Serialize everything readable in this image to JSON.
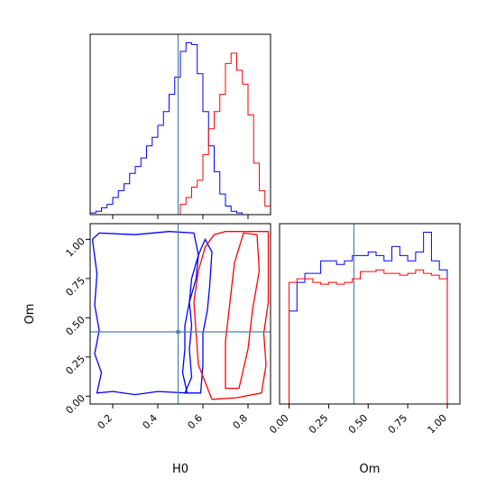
{
  "chart_data": {
    "type": "corner",
    "truth": {
      "H0": 0.49,
      "Om": 0.41
    },
    "colors": {
      "blue": "#0000ff",
      "red": "#ff0000",
      "truth": "#4c7fb5"
    },
    "panels": [
      {
        "id": "hist-H0",
        "type": "step-histogram",
        "xlim": [
          0.1,
          0.9
        ],
        "bins": [
          0.1,
          0.125,
          0.15,
          0.175,
          0.2,
          0.225,
          0.25,
          0.275,
          0.3,
          0.325,
          0.35,
          0.375,
          0.4,
          0.425,
          0.45,
          0.475,
          0.5,
          0.525,
          0.55,
          0.575,
          0.6,
          0.625,
          0.65,
          0.675,
          0.7,
          0.725,
          0.75,
          0.775,
          0.8,
          0.825,
          0.85,
          0.875,
          0.9
        ],
        "series": [
          {
            "color": "blue",
            "values": [
              0.01,
              0.02,
              0.04,
              0.06,
              0.1,
              0.14,
              0.18,
              0.24,
              0.28,
              0.33,
              0.4,
              0.45,
              0.52,
              0.6,
              0.7,
              0.8,
              0.95,
              1.0,
              0.99,
              0.82,
              0.6,
              0.4,
              0.25,
              0.12,
              0.05,
              0.02,
              0.01,
              0.0,
              0.0,
              0.0,
              0.0,
              0.0
            ]
          },
          {
            "color": "red",
            "values": [
              0.0,
              0.0,
              0.0,
              0.0,
              0.0,
              0.0,
              0.0,
              0.0,
              0.0,
              0.0,
              0.0,
              0.0,
              0.0,
              0.0,
              0.0,
              0.0,
              0.06,
              0.1,
              0.16,
              0.2,
              0.35,
              0.5,
              0.6,
              0.7,
              0.88,
              0.94,
              0.84,
              0.76,
              0.58,
              0.3,
              0.14,
              0.05
            ]
          }
        ]
      },
      {
        "id": "contour-H0-Om",
        "type": "contour",
        "xlim": [
          0.1,
          0.9
        ],
        "ylim": [
          -0.05,
          1.1
        ],
        "xticks": [
          "0.2",
          "0.4",
          "0.6",
          "0.8"
        ],
        "yticks": [
          "0.00",
          "0.25",
          "0.50",
          "0.75",
          "1.00"
        ],
        "xlabel": "H0",
        "ylabel": "Om",
        "series": [
          {
            "color": "blue",
            "contours": [
              [
                [
                  0.13,
                  0.02
                ],
                [
                  0.15,
                  0.15
                ],
                [
                  0.12,
                  0.27
                ],
                [
                  0.14,
                  0.42
                ],
                [
                  0.12,
                  0.58
                ],
                [
                  0.13,
                  0.78
                ],
                [
                  0.11,
                  1.0
                ],
                [
                  0.14,
                  1.04
                ],
                [
                  0.3,
                  1.03
                ],
                [
                  0.45,
                  1.05
                ],
                [
                  0.56,
                  1.04
                ],
                [
                  0.58,
                  0.9
                ],
                [
                  0.55,
                  0.75
                ],
                [
                  0.54,
                  0.6
                ],
                [
                  0.52,
                  0.45
                ],
                [
                  0.52,
                  0.3
                ],
                [
                  0.51,
                  0.15
                ],
                [
                  0.53,
                  0.02
                ],
                [
                  0.4,
                  0.03
                ],
                [
                  0.3,
                  0.01
                ],
                [
                  0.2,
                  0.03
                ],
                [
                  0.13,
                  0.02
                ]
              ],
              [
                [
                  0.52,
                  0.02
                ],
                [
                  0.55,
                  0.12
                ],
                [
                  0.54,
                  0.3
                ],
                [
                  0.55,
                  0.45
                ],
                [
                  0.54,
                  0.6
                ],
                [
                  0.57,
                  0.75
                ],
                [
                  0.58,
                  0.9
                ],
                [
                  0.61,
                  1.0
                ],
                [
                  0.64,
                  0.92
                ],
                [
                  0.63,
                  0.7
                ],
                [
                  0.62,
                  0.55
                ],
                [
                  0.6,
                  0.4
                ],
                [
                  0.6,
                  0.2
                ],
                [
                  0.59,
                  0.02
                ],
                [
                  0.52,
                  0.02
                ]
              ]
            ]
          },
          {
            "color": "red",
            "contours": [
              [
                [
                  0.64,
                  -0.02
                ],
                [
                  0.75,
                  -0.01
                ],
                [
                  0.86,
                  0.02
                ],
                [
                  0.88,
                  0.2
                ],
                [
                  0.87,
                  0.4
                ],
                [
                  0.89,
                  0.6
                ],
                [
                  0.89,
                  1.05
                ],
                [
                  0.7,
                  1.05
                ],
                [
                  0.65,
                  1.03
                ],
                [
                  0.61,
                  0.95
                ],
                [
                  0.58,
                  0.8
                ],
                [
                  0.56,
                  0.6
                ],
                [
                  0.57,
                  0.4
                ],
                [
                  0.58,
                  0.2
                ],
                [
                  0.64,
                  -0.02
                ]
              ],
              [
                [
                  0.7,
                  0.05
                ],
                [
                  0.76,
                  0.05
                ],
                [
                  0.8,
                  0.3
                ],
                [
                  0.82,
                  0.55
                ],
                [
                  0.85,
                  0.8
                ],
                [
                  0.84,
                  1.03
                ],
                [
                  0.78,
                  1.04
                ],
                [
                  0.74,
                  0.85
                ],
                [
                  0.72,
                  0.6
                ],
                [
                  0.7,
                  0.35
                ],
                [
                  0.7,
                  0.05
                ]
              ]
            ]
          }
        ]
      },
      {
        "id": "hist-Om",
        "type": "step-histogram",
        "xlim": [
          -0.06,
          1.08
        ],
        "xticks": [
          "0.00",
          "0.25",
          "0.50",
          "0.75",
          "1.00"
        ],
        "xlabel": "Om",
        "bins": [
          0.0,
          0.05,
          0.1,
          0.15,
          0.2,
          0.25,
          0.3,
          0.35,
          0.4,
          0.45,
          0.5,
          0.55,
          0.6,
          0.65,
          0.7,
          0.75,
          0.8,
          0.85,
          0.9,
          0.95,
          1.0
        ],
        "series": [
          {
            "color": "blue",
            "values": [
              0.52,
              0.68,
              0.73,
              0.73,
              0.8,
              0.8,
              0.78,
              0.8,
              0.83,
              0.83,
              0.85,
              0.83,
              0.8,
              0.88,
              0.83,
              0.8,
              0.85,
              0.96,
              0.8,
              0.75
            ]
          },
          {
            "color": "red",
            "values": [
              0.68,
              0.7,
              0.7,
              0.68,
              0.67,
              0.68,
              0.67,
              0.68,
              0.7,
              0.74,
              0.74,
              0.75,
              0.73,
              0.73,
              0.72,
              0.73,
              0.75,
              0.73,
              0.72,
              0.7
            ]
          }
        ]
      }
    ]
  }
}
